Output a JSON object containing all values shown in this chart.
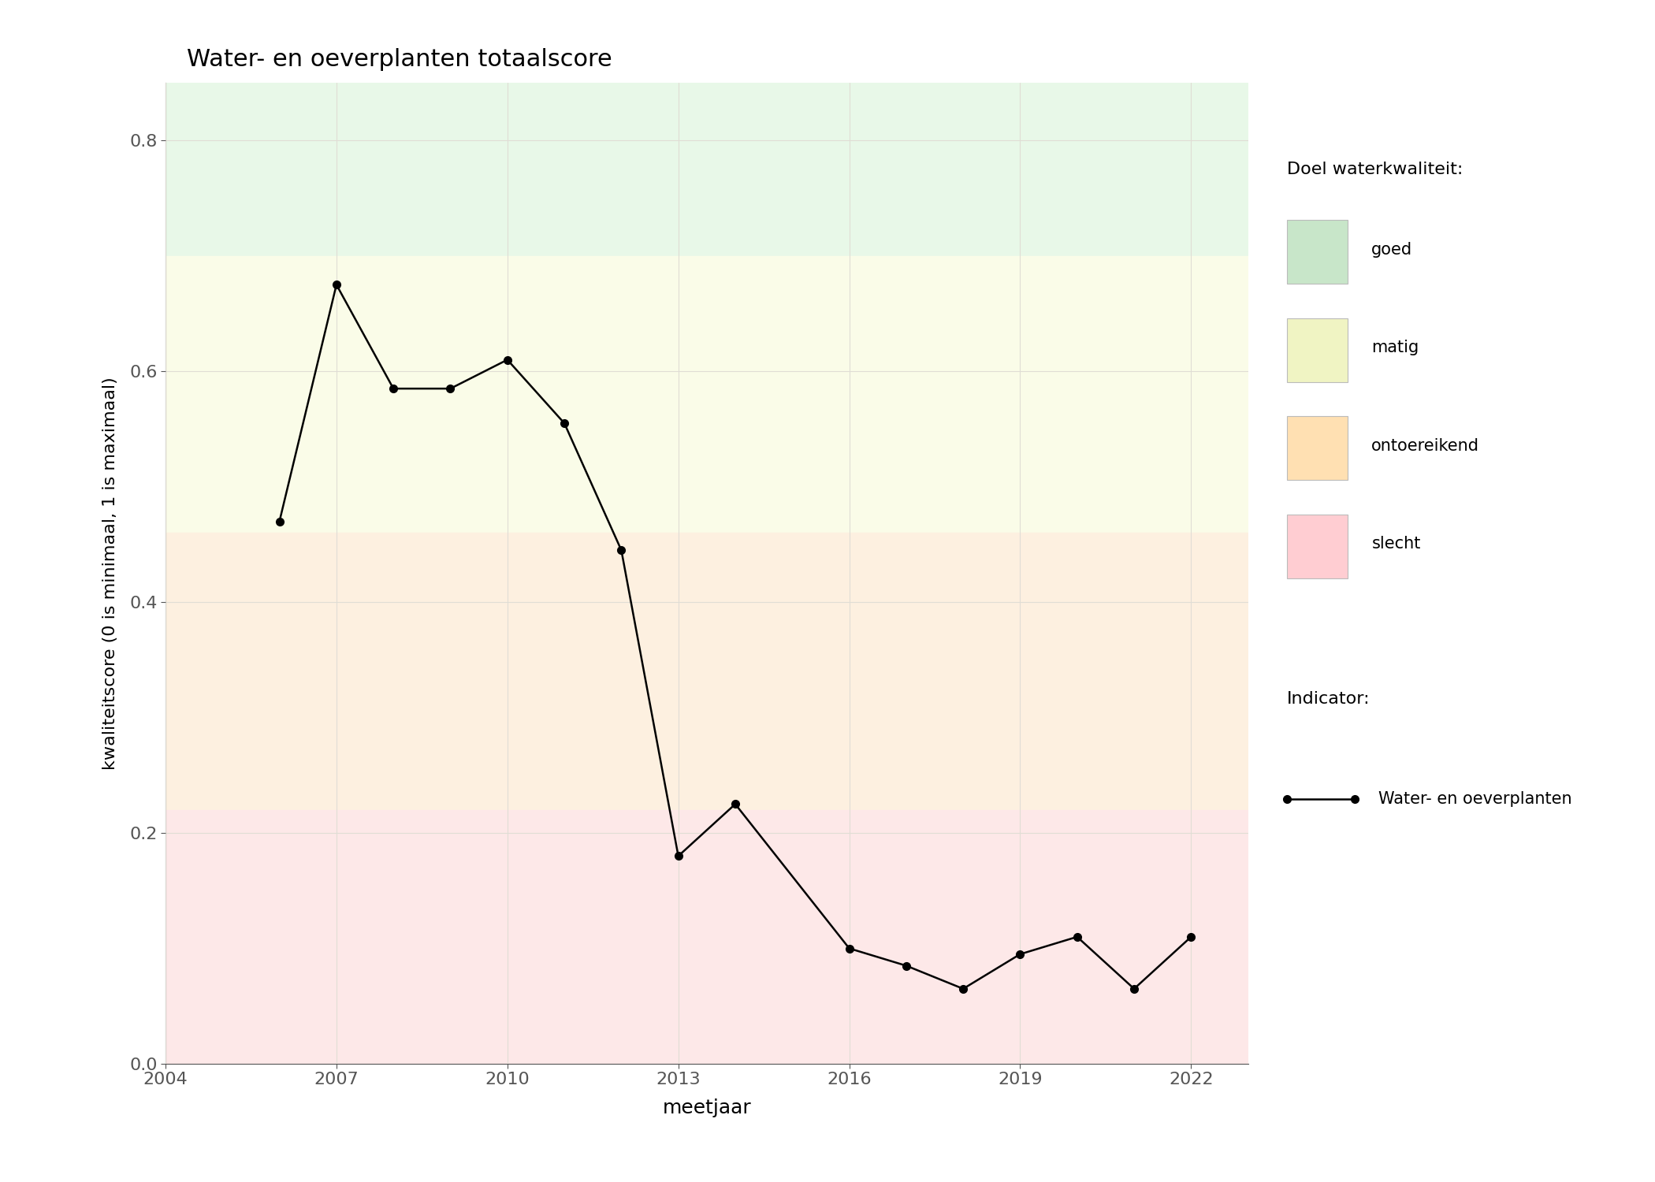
{
  "title": "Water- en oeverplanten totaalscore",
  "xlabel": "meetjaar",
  "ylabel": "kwaliteitscore (0 is minimaal, 1 is maximaal)",
  "years": [
    2006,
    2007,
    2008,
    2009,
    2010,
    2011,
    2012,
    2013,
    2014,
    2016,
    2017,
    2018,
    2019,
    2020,
    2021,
    2022
  ],
  "values": [
    0.47,
    0.675,
    0.585,
    0.585,
    0.61,
    0.555,
    0.445,
    0.18,
    0.225,
    0.1,
    0.085,
    0.065,
    0.095,
    0.11,
    0.065,
    0.11
  ],
  "ylim": [
    0.0,
    0.85
  ],
  "xlim": [
    2004,
    2023
  ],
  "bg_green": [
    0.7,
    0.86
  ],
  "bg_yellow": [
    0.46,
    0.7
  ],
  "bg_peach": [
    0.22,
    0.46
  ],
  "bg_pink": [
    0.0,
    0.22
  ],
  "color_green": "#e8f8e8",
  "color_yellow": "#fafce8",
  "color_peach": "#fdf0e0",
  "color_pink": "#fde8e8",
  "line_color": "#000000",
  "marker_color": "#000000",
  "grid_color": "#e0ddd5",
  "legend_title1": "Doel waterkwaliteit:",
  "legend_labels1": [
    "goed",
    "matig",
    "ontoereikend",
    "slecht"
  ],
  "legend_colors1": [
    "#c8e6c9",
    "#f0f4c3",
    "#ffe0b2",
    "#ffcdd2"
  ],
  "legend_title2": "Indicator:",
  "legend_label2": "Water- en oeverplanten",
  "xticks": [
    2004,
    2007,
    2010,
    2013,
    2016,
    2019,
    2022
  ],
  "yticks": [
    0.0,
    0.2,
    0.4,
    0.6,
    0.8
  ]
}
